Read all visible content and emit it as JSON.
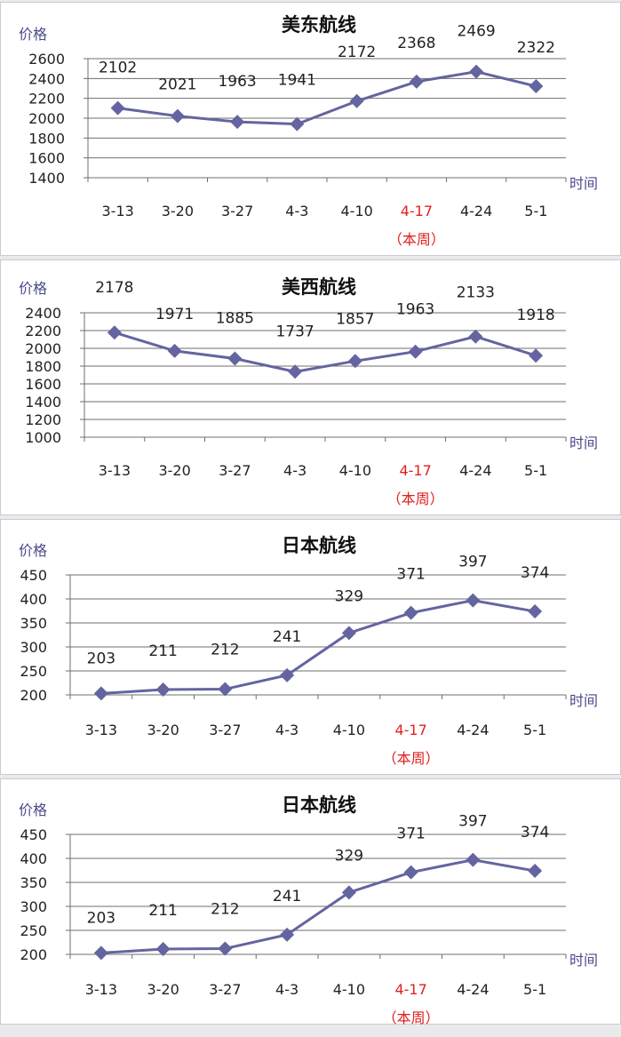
{
  "chart_data": [
    {
      "type": "line",
      "title": "美东航线",
      "ylabel": "价格",
      "xlabel": "时间",
      "categories": [
        "3-13",
        "3-20",
        "3-27",
        "4-3",
        "4-10",
        "4-17",
        "4-24",
        "5-1"
      ],
      "highlight_index": 5,
      "highlight_note": "（本周）",
      "values": [
        2102,
        2021,
        1963,
        1941,
        2172,
        2368,
        2469,
        2322
      ],
      "ylim": [
        1400,
        2600
      ],
      "yticks": [
        1400,
        1600,
        1800,
        2000,
        2200,
        2400,
        2600
      ],
      "grid": true,
      "color": "#6464a0"
    },
    {
      "type": "line",
      "title": "美西航线",
      "ylabel": "价格",
      "xlabel": "时间",
      "categories": [
        "3-13",
        "3-20",
        "3-27",
        "4-3",
        "4-10",
        "4-17",
        "4-24",
        "5-1"
      ],
      "highlight_index": 5,
      "highlight_note": "（本周）",
      "values": [
        2178,
        1971,
        1885,
        1737,
        1857,
        1963,
        2133,
        1918
      ],
      "ylim": [
        1000,
        2400
      ],
      "yticks": [
        1000,
        1200,
        1400,
        1600,
        1800,
        2000,
        2200,
        2400
      ],
      "grid": true,
      "color": "#6464a0"
    },
    {
      "type": "line",
      "title": "日本航线",
      "ylabel": "价格",
      "xlabel": "时间",
      "categories": [
        "3-13",
        "3-20",
        "3-27",
        "4-3",
        "4-10",
        "4-17",
        "4-24",
        "5-1"
      ],
      "highlight_index": 5,
      "highlight_note": "（本周）",
      "values": [
        203,
        211,
        212,
        241,
        329,
        371,
        397,
        374
      ],
      "ylim": [
        200,
        450
      ],
      "yticks": [
        200,
        250,
        300,
        350,
        400,
        450
      ],
      "grid": true,
      "color": "#6464a0"
    },
    {
      "type": "line",
      "title": "日本航线",
      "ylabel": "价格",
      "xlabel": "时间",
      "categories": [
        "3-13",
        "3-20",
        "3-27",
        "4-3",
        "4-10",
        "4-17",
        "4-24",
        "5-1"
      ],
      "highlight_index": 5,
      "highlight_note": "（本周）",
      "values": [
        203,
        211,
        212,
        241,
        329,
        371,
        397,
        374
      ],
      "ylim": [
        200,
        450
      ],
      "yticks": [
        200,
        250,
        300,
        350,
        400,
        450
      ],
      "grid": true,
      "color": "#6464a0"
    }
  ]
}
